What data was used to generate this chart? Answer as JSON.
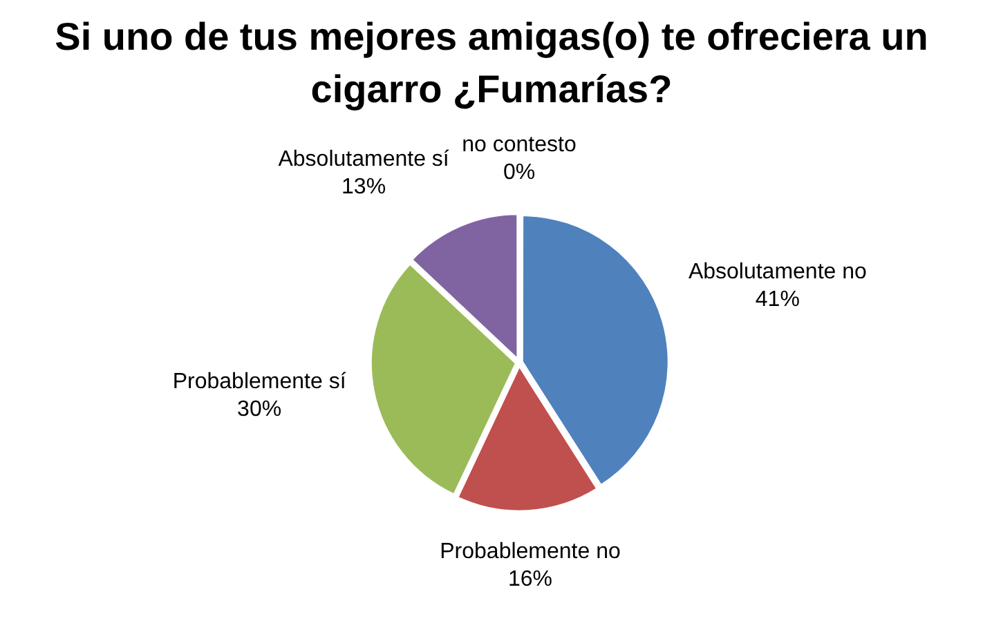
{
  "chart_data": {
    "type": "pie",
    "title": "Si uno de tus mejores amigas(o) te ofreciera un cigarro ¿Fumarías?",
    "categories": [
      "Absolutamente no",
      "Probablemente no",
      "Probablemente sí",
      "Absolutamente sí",
      "no contesto"
    ],
    "values": [
      41,
      16,
      30,
      13,
      0
    ],
    "colors": [
      "#4f81bd",
      "#c0504d",
      "#9bbb59",
      "#8064a2",
      "#4bacc6"
    ],
    "value_labels": [
      "41%",
      "16%",
      "30%",
      "13%",
      "0%"
    ]
  }
}
